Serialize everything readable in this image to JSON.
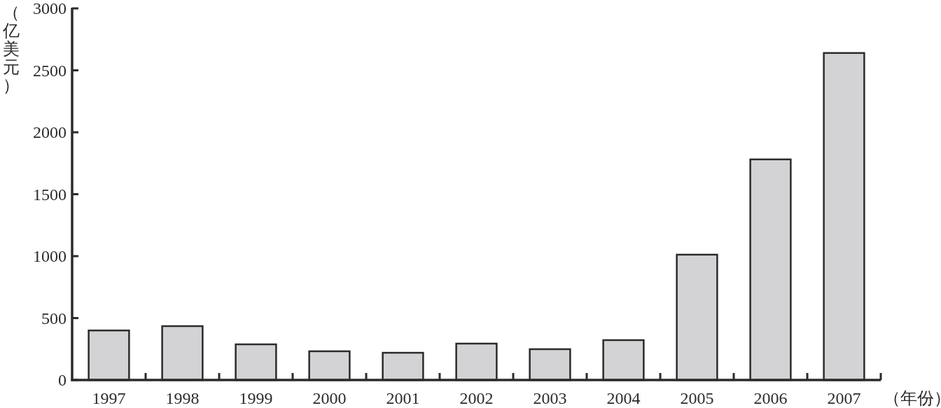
{
  "chart_data": {
    "type": "bar",
    "xlabel": "（年份）",
    "ylabel": "（亿美元）",
    "categories": [
      "1997",
      "1998",
      "1999",
      "2000",
      "2001",
      "2002",
      "2003",
      "2004",
      "2005",
      "2006",
      "2007"
    ],
    "values": [
      400,
      435,
      288,
      232,
      220,
      294,
      249,
      322,
      1012,
      1781,
      2640
    ],
    "color": "#d3d3d6",
    "ylim": [
      0,
      3000
    ],
    "yticks": [
      0,
      500,
      1000,
      1500,
      2000,
      2500,
      3000
    ],
    "grid": false
  }
}
